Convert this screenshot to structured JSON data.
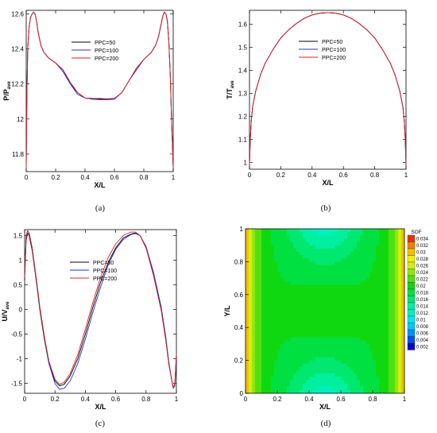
{
  "chart_data": [
    {
      "type": "line",
      "panel_label": "(a)",
      "xlabel": "X/L",
      "ylabel_base": "P/P",
      "ylabel_sub": "ave",
      "xlim": [
        0,
        1
      ],
      "ylim": [
        11.7,
        12.62
      ],
      "xticks": [
        0,
        0.2,
        0.4,
        0.6,
        0.8,
        1
      ],
      "xticklabels": [
        "0",
        "0.2",
        "0.4",
        "0.6",
        "0.8",
        "1"
      ],
      "yticks": [
        11.8,
        12,
        12.2,
        12.4,
        12.6
      ],
      "yticklabels": [
        "11.8",
        "12",
        "12.2",
        "12.4",
        "12.6"
      ],
      "grid": false,
      "legend_position": "top-center",
      "series": [
        {
          "name": "PPC=50",
          "color": "#000000",
          "x": [
            0,
            0.005,
            0.01,
            0.02,
            0.03,
            0.04,
            0.05,
            0.06,
            0.07,
            0.08,
            0.1,
            0.12,
            0.15,
            0.2,
            0.25,
            0.3,
            0.35,
            0.4,
            0.45,
            0.5,
            0.55,
            0.6,
            0.65,
            0.7,
            0.75,
            0.8,
            0.85,
            0.88,
            0.9,
            0.92,
            0.93,
            0.94,
            0.95,
            0.96,
            0.97,
            0.98,
            0.99,
            0.995,
            1
          ],
          "y": [
            11.72,
            12.15,
            12.4,
            12.53,
            12.58,
            12.6,
            12.61,
            12.6,
            12.56,
            12.5,
            12.42,
            12.38,
            12.35,
            12.32,
            12.28,
            12.2,
            12.15,
            12.12,
            12.115,
            12.113,
            12.112,
            12.116,
            12.15,
            12.22,
            12.29,
            12.34,
            12.38,
            12.42,
            12.47,
            12.55,
            12.59,
            12.61,
            12.6,
            12.56,
            12.45,
            12.25,
            11.95,
            11.85,
            11.72
          ]
        },
        {
          "name": "PPC=100",
          "color": "#2233cc",
          "x": [
            0,
            0.005,
            0.01,
            0.02,
            0.03,
            0.04,
            0.05,
            0.06,
            0.07,
            0.08,
            0.1,
            0.12,
            0.15,
            0.2,
            0.25,
            0.3,
            0.35,
            0.4,
            0.45,
            0.5,
            0.55,
            0.6,
            0.65,
            0.7,
            0.75,
            0.8,
            0.85,
            0.88,
            0.9,
            0.92,
            0.93,
            0.94,
            0.95,
            0.96,
            0.97,
            0.98,
            0.99,
            0.995,
            1
          ],
          "y": [
            11.72,
            12.15,
            12.4,
            12.53,
            12.58,
            12.6,
            12.61,
            12.6,
            12.56,
            12.5,
            12.42,
            12.38,
            12.35,
            12.32,
            12.27,
            12.2,
            12.14,
            12.12,
            12.118,
            12.117,
            12.115,
            12.118,
            12.15,
            12.22,
            12.28,
            12.34,
            12.38,
            12.42,
            12.47,
            12.55,
            12.59,
            12.61,
            12.6,
            12.56,
            12.45,
            12.25,
            11.95,
            11.85,
            11.72
          ]
        },
        {
          "name": "PPC=200",
          "color": "#e02020",
          "x": [
            0,
            0.005,
            0.01,
            0.02,
            0.03,
            0.04,
            0.05,
            0.06,
            0.07,
            0.08,
            0.1,
            0.12,
            0.15,
            0.2,
            0.25,
            0.3,
            0.35,
            0.4,
            0.45,
            0.5,
            0.55,
            0.6,
            0.65,
            0.7,
            0.75,
            0.8,
            0.85,
            0.88,
            0.9,
            0.92,
            0.93,
            0.94,
            0.95,
            0.96,
            0.97,
            0.98,
            0.99,
            0.995,
            1
          ],
          "y": [
            11.72,
            12.15,
            12.4,
            12.53,
            12.58,
            12.6,
            12.61,
            12.6,
            12.56,
            12.5,
            12.42,
            12.38,
            12.35,
            12.32,
            12.28,
            12.21,
            12.15,
            12.12,
            12.113,
            12.11,
            12.11,
            12.113,
            12.15,
            12.22,
            12.29,
            12.34,
            12.38,
            12.42,
            12.47,
            12.55,
            12.59,
            12.61,
            12.6,
            12.56,
            12.45,
            12.25,
            11.95,
            11.85,
            11.72
          ]
        }
      ]
    },
    {
      "type": "line",
      "panel_label": "(b)",
      "xlabel": "X/L",
      "ylabel_base": "T/T",
      "ylabel_sub": "ave",
      "xlim": [
        0,
        1
      ],
      "ylim": [
        0.97,
        1.66
      ],
      "xticks": [
        0,
        0.2,
        0.4,
        0.6,
        0.8,
        1
      ],
      "xticklabels": [
        "0",
        "0.2",
        "0.4",
        "0.6",
        "0.8",
        "1"
      ],
      "yticks": [
        1,
        1.1,
        1.2,
        1.3,
        1.4,
        1.5,
        1.6
      ],
      "yticklabels": [
        "1",
        "1.1",
        "1.2",
        "1.3",
        "1.4",
        "1.5",
        "1.6"
      ],
      "grid": false,
      "legend_position": "top-right",
      "series": [
        {
          "name": "PPC=50",
          "color": "#000000",
          "x": [
            0,
            0.005,
            0.01,
            0.02,
            0.04,
            0.07,
            0.1,
            0.15,
            0.2,
            0.25,
            0.3,
            0.35,
            0.4,
            0.45,
            0.5,
            0.55,
            0.6,
            0.65,
            0.7,
            0.75,
            0.8,
            0.85,
            0.9,
            0.93,
            0.96,
            0.98,
            0.99,
            0.995,
            1
          ],
          "y": [
            0.99,
            1.1,
            1.17,
            1.24,
            1.31,
            1.38,
            1.43,
            1.49,
            1.54,
            1.575,
            1.603,
            1.625,
            1.64,
            1.648,
            1.65,
            1.648,
            1.64,
            1.625,
            1.603,
            1.575,
            1.54,
            1.49,
            1.43,
            1.38,
            1.31,
            1.24,
            1.17,
            1.1,
            0.99
          ]
        },
        {
          "name": "PPC=100",
          "color": "#2233cc",
          "x": [
            0,
            0.005,
            0.01,
            0.02,
            0.04,
            0.07,
            0.1,
            0.15,
            0.2,
            0.25,
            0.3,
            0.35,
            0.4,
            0.45,
            0.5,
            0.55,
            0.6,
            0.65,
            0.7,
            0.75,
            0.8,
            0.85,
            0.9,
            0.93,
            0.96,
            0.98,
            0.99,
            0.995,
            1
          ],
          "y": [
            0.99,
            1.1,
            1.17,
            1.24,
            1.31,
            1.38,
            1.43,
            1.49,
            1.54,
            1.575,
            1.603,
            1.625,
            1.64,
            1.648,
            1.65,
            1.648,
            1.64,
            1.625,
            1.603,
            1.575,
            1.54,
            1.49,
            1.43,
            1.38,
            1.31,
            1.24,
            1.17,
            1.1,
            0.99
          ]
        },
        {
          "name": "PPC=200",
          "color": "#e02020",
          "x": [
            0,
            0.005,
            0.01,
            0.02,
            0.04,
            0.07,
            0.1,
            0.15,
            0.2,
            0.25,
            0.3,
            0.35,
            0.4,
            0.45,
            0.5,
            0.55,
            0.6,
            0.65,
            0.7,
            0.75,
            0.8,
            0.85,
            0.9,
            0.93,
            0.96,
            0.98,
            0.99,
            0.995,
            1
          ],
          "y": [
            0.99,
            1.1,
            1.17,
            1.24,
            1.31,
            1.38,
            1.43,
            1.49,
            1.54,
            1.575,
            1.603,
            1.625,
            1.64,
            1.648,
            1.65,
            1.648,
            1.64,
            1.625,
            1.603,
            1.575,
            1.54,
            1.49,
            1.43,
            1.38,
            1.31,
            1.24,
            1.17,
            1.1,
            0.99
          ]
        }
      ]
    },
    {
      "type": "line",
      "panel_label": "(c)",
      "xlabel": "X/L",
      "ylabel_base": "U/V",
      "ylabel_sub": "ave",
      "xlim": [
        0,
        1
      ],
      "ylim": [
        -1.7,
        1.62
      ],
      "xticks": [
        0,
        0.2,
        0.4,
        0.6,
        0.8,
        1
      ],
      "xticklabels": [
        "0",
        "0.2",
        "0.4",
        "0.6",
        "0.8",
        "1"
      ],
      "yticks": [
        -1.5,
        -1,
        -0.5,
        0,
        0.5,
        1,
        1.5
      ],
      "yticklabels": [
        "-1.5",
        "-1",
        "-0.5",
        "0",
        "0.5",
        "1",
        "1.5"
      ],
      "grid": false,
      "legend_position": "top-center",
      "series": [
        {
          "name": "PPC=50",
          "color": "#000000",
          "x": [
            0,
            0.01,
            0.02,
            0.03,
            0.05,
            0.08,
            0.1,
            0.13,
            0.16,
            0.2,
            0.23,
            0.26,
            0.3,
            0.35,
            0.4,
            0.45,
            0.5,
            0.55,
            0.6,
            0.65,
            0.7,
            0.73,
            0.76,
            0.8,
            0.85,
            0.9,
            0.93,
            0.95,
            0.97,
            0.98,
            0.99,
            1
          ],
          "y": [
            0.6,
            1.4,
            1.55,
            1.5,
            1.2,
            0.5,
            0,
            -0.6,
            -1.1,
            -1.45,
            -1.55,
            -1.52,
            -1.35,
            -1.0,
            -0.5,
            0.05,
            0.55,
            0.95,
            1.25,
            1.45,
            1.53,
            1.55,
            1.5,
            1.25,
            0.7,
            0,
            -0.6,
            -1.1,
            -1.45,
            -1.6,
            -1.5,
            -0.9
          ]
        },
        {
          "name": "PPC=100",
          "color": "#2233cc",
          "x": [
            0,
            0.01,
            0.02,
            0.03,
            0.05,
            0.08,
            0.1,
            0.13,
            0.16,
            0.2,
            0.23,
            0.26,
            0.3,
            0.35,
            0.4,
            0.45,
            0.5,
            0.55,
            0.6,
            0.65,
            0.7,
            0.73,
            0.76,
            0.8,
            0.85,
            0.9,
            0.93,
            0.95,
            0.97,
            0.98,
            0.99,
            1
          ],
          "y": [
            0.7,
            1.5,
            1.6,
            1.55,
            1.25,
            0.55,
            0.05,
            -0.55,
            -1.1,
            -1.5,
            -1.62,
            -1.6,
            -1.45,
            -1.1,
            -0.6,
            -0.05,
            0.45,
            0.9,
            1.22,
            1.42,
            1.52,
            1.54,
            1.5,
            1.28,
            0.75,
            0.05,
            -0.55,
            -1.05,
            -1.45,
            -1.6,
            -1.55,
            -1.0
          ]
        },
        {
          "name": "PPC=200",
          "color": "#e02020",
          "x": [
            0,
            0.01,
            0.02,
            0.03,
            0.05,
            0.08,
            0.1,
            0.13,
            0.16,
            0.2,
            0.23,
            0.26,
            0.3,
            0.35,
            0.4,
            0.45,
            0.5,
            0.55,
            0.6,
            0.65,
            0.7,
            0.73,
            0.76,
            0.8,
            0.85,
            0.9,
            0.93,
            0.95,
            0.97,
            0.98,
            0.99,
            1
          ],
          "y": [
            0.65,
            1.45,
            1.6,
            1.55,
            1.25,
            0.55,
            0.05,
            -0.55,
            -1.05,
            -1.42,
            -1.52,
            -1.48,
            -1.3,
            -0.92,
            -0.4,
            0.15,
            0.65,
            1.05,
            1.33,
            1.5,
            1.57,
            1.57,
            1.5,
            1.25,
            0.68,
            -0.02,
            -0.62,
            -1.1,
            -1.45,
            -1.6,
            -1.5,
            -0.9
          ]
        }
      ]
    },
    {
      "type": "heatmap",
      "panel_label": "(d)",
      "xlabel": "X/L",
      "ylabel": "Y/L",
      "xlim": [
        0,
        1
      ],
      "ylim": [
        0,
        1
      ],
      "xticks": [
        0,
        0.2,
        0.4,
        0.6,
        0.8,
        1
      ],
      "xticklabels": [
        "0",
        "0.2",
        "0.4",
        "0.6",
        "0.8",
        "1"
      ],
      "yticks": [
        0,
        0.2,
        0.4,
        0.6,
        0.8,
        1
      ],
      "yticklabels": [
        "0",
        "0.2",
        "0.4",
        "0.6",
        "0.8",
        "1"
      ],
      "colorbar_title": "SOF",
      "levels": [
        0.002,
        0.004,
        0.006,
        0.008,
        0.01,
        0.012,
        0.014,
        0.016,
        0.018,
        0.02,
        0.022,
        0.024,
        0.026,
        0.028,
        0.03,
        0.032,
        0.034
      ],
      "level_labels": [
        "0.002",
        "0.004",
        "0.006",
        "0.008",
        "0.01",
        "0.012",
        "0.014",
        "0.016",
        "0.018",
        "0.02",
        "0.022",
        "0.024",
        "0.026",
        "0.028",
        "0.03",
        "0.032",
        "0.034"
      ],
      "level_colors": [
        "#0000d0",
        "#0050f0",
        "#0090ff",
        "#00c8ff",
        "#00e8f0",
        "#00f0c0",
        "#00f0a0",
        "#00e870",
        "#00e040",
        "#10d810",
        "#50e010",
        "#90e810",
        "#d0f010",
        "#f0f000",
        "#f0c000",
        "#f08000",
        "#e83000"
      ],
      "field_description_values": {
        "center_level": 0.02,
        "top_bottom_center_level": 0.013,
        "side_wall_level": 0.034
      }
    }
  ],
  "captions": [
    "(a)",
    "(b)",
    "(c)",
    "(d)"
  ]
}
